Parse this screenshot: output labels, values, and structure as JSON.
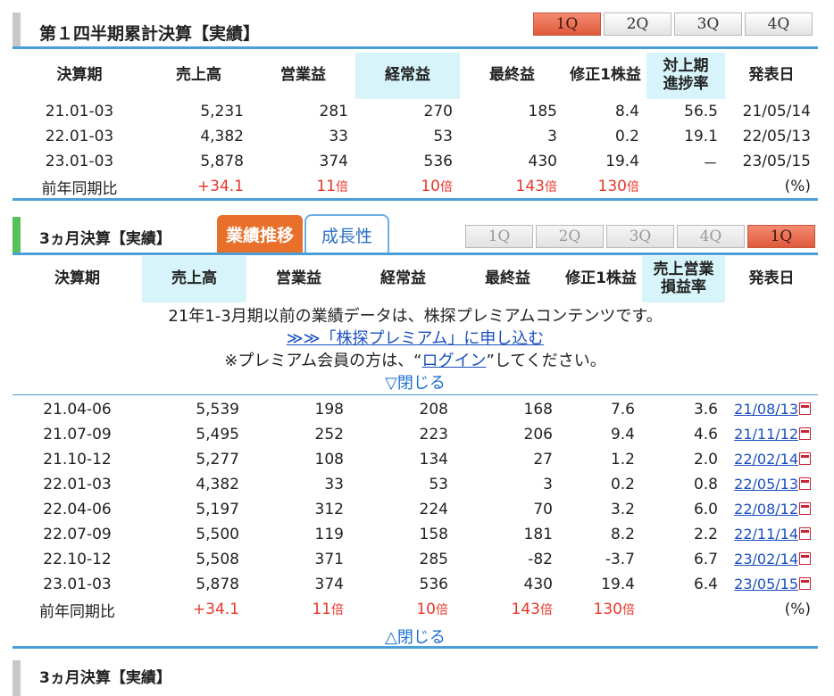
{
  "colors": {
    "accent_blue": "#4a9fd8",
    "orange": "#e8702a",
    "red": "#e8372a",
    "highlight": "#d6f4f9",
    "sel_q": "#e05a3c"
  },
  "section1": {
    "title": "第１四半期累計決算【実績】",
    "q_buttons": [
      "1Q",
      "2Q",
      "3Q",
      "4Q"
    ],
    "selected_q": "1Q",
    "headers": [
      "決算期",
      "売上高",
      "営業益",
      "経常益",
      "最終益",
      "修正1株益",
      "対上期\n進捗率",
      "発表日"
    ],
    "rows": [
      [
        "21.01-03",
        "5,231",
        "281",
        "270",
        "185",
        "8.4",
        "56.5",
        "21/05/14"
      ],
      [
        "22.01-03",
        "4,382",
        "33",
        "53",
        "3",
        "0.2",
        "19.1",
        "22/05/13"
      ],
      [
        "23.01-03",
        "5,878",
        "374",
        "536",
        "430",
        "19.4",
        "－",
        "23/05/15"
      ]
    ],
    "yoy": {
      "label": "前年同期比",
      "sales": "+34.1",
      "op": "11",
      "ord": "10",
      "net": "143",
      "eps": "130",
      "unit": "倍",
      "pct": "(%)"
    }
  },
  "section2": {
    "title": "3ヵ月決算【実績】",
    "tabs": [
      "業績推移",
      "成長性"
    ],
    "q_buttons": [
      "1Q",
      "2Q",
      "3Q",
      "4Q",
      "1Q"
    ],
    "headers": [
      "決算期",
      "売上高",
      "営業益",
      "経常益",
      "最終益",
      "修正1株益",
      "売上営業\n損益率",
      "発表日"
    ],
    "premium_line1": "21年1-3月期以前の業績データは、株探プレミアムコンテンツです。",
    "premium_link": "≫≫「株探プレミアム」に申し込む",
    "premium_line3_pre": "※プレミアム会員の方は、“",
    "login_link": "ログイン",
    "premium_line3_post": "”してください。",
    "close_top": "▽閉じる",
    "rows": [
      [
        "21.04-06",
        "5,539",
        "198",
        "208",
        "168",
        "7.6",
        "3.6",
        "21/08/13"
      ],
      [
        "21.07-09",
        "5,495",
        "252",
        "223",
        "206",
        "9.4",
        "4.6",
        "21/11/12"
      ],
      [
        "21.10-12",
        "5,277",
        "108",
        "134",
        "27",
        "1.2",
        "2.0",
        "22/02/14"
      ],
      [
        "22.01-03",
        "4,382",
        "33",
        "53",
        "3",
        "0.2",
        "0.8",
        "22/05/13"
      ],
      [
        "22.04-06",
        "5,197",
        "312",
        "224",
        "70",
        "3.2",
        "6.0",
        "22/08/12"
      ],
      [
        "22.07-09",
        "5,500",
        "119",
        "158",
        "181",
        "8.2",
        "2.2",
        "22/11/14"
      ],
      [
        "22.10-12",
        "5,508",
        "371",
        "285",
        "-82",
        "-3.7",
        "6.7",
        "23/02/14"
      ],
      [
        "23.01-03",
        "5,878",
        "374",
        "536",
        "430",
        "19.4",
        "6.4",
        "23/05/15"
      ]
    ],
    "yoy": {
      "label": "前年同期比",
      "sales": "+34.1",
      "op": "11",
      "ord": "10",
      "net": "143",
      "eps": "130",
      "unit": "倍",
      "pct": "(%)"
    },
    "close_bottom": "△閉じる"
  },
  "section3": {
    "title": "3ヵ月決算【実績】"
  }
}
